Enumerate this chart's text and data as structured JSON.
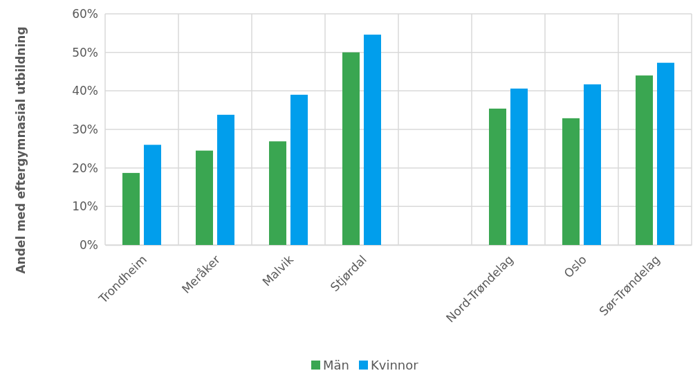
{
  "chart_data": {
    "type": "bar",
    "ylabel": "Andel med eftergymnasial utbildning",
    "categories": [
      "Trondheim",
      "Meråker",
      "Malvik",
      "Stjørdal",
      null,
      "Nord-Trøndelag",
      "Oslo",
      "Sør-Trøndelag"
    ],
    "series": [
      {
        "name": "Män",
        "color": "#3aa651",
        "values": [
          18.7,
          24.5,
          26.9,
          50,
          null,
          35.4,
          32.9,
          44.0
        ]
      },
      {
        "name": "Kvinnor",
        "color": "#019eec",
        "values": [
          26.0,
          33.8,
          39.0,
          54.6,
          null,
          40.6,
          41.7,
          47.3
        ]
      }
    ],
    "ylim": [
      0,
      60
    ],
    "yticks": [
      {
        "value": 0,
        "label": "0%"
      },
      {
        "value": 10,
        "label": "10%"
      },
      {
        "value": 20,
        "label": "20%"
      },
      {
        "value": 30,
        "label": "30%"
      },
      {
        "value": 40,
        "label": "40%"
      },
      {
        "value": 50,
        "label": "50%"
      },
      {
        "value": 60,
        "label": "60%"
      }
    ],
    "grid": true,
    "legend": "bottom"
  }
}
